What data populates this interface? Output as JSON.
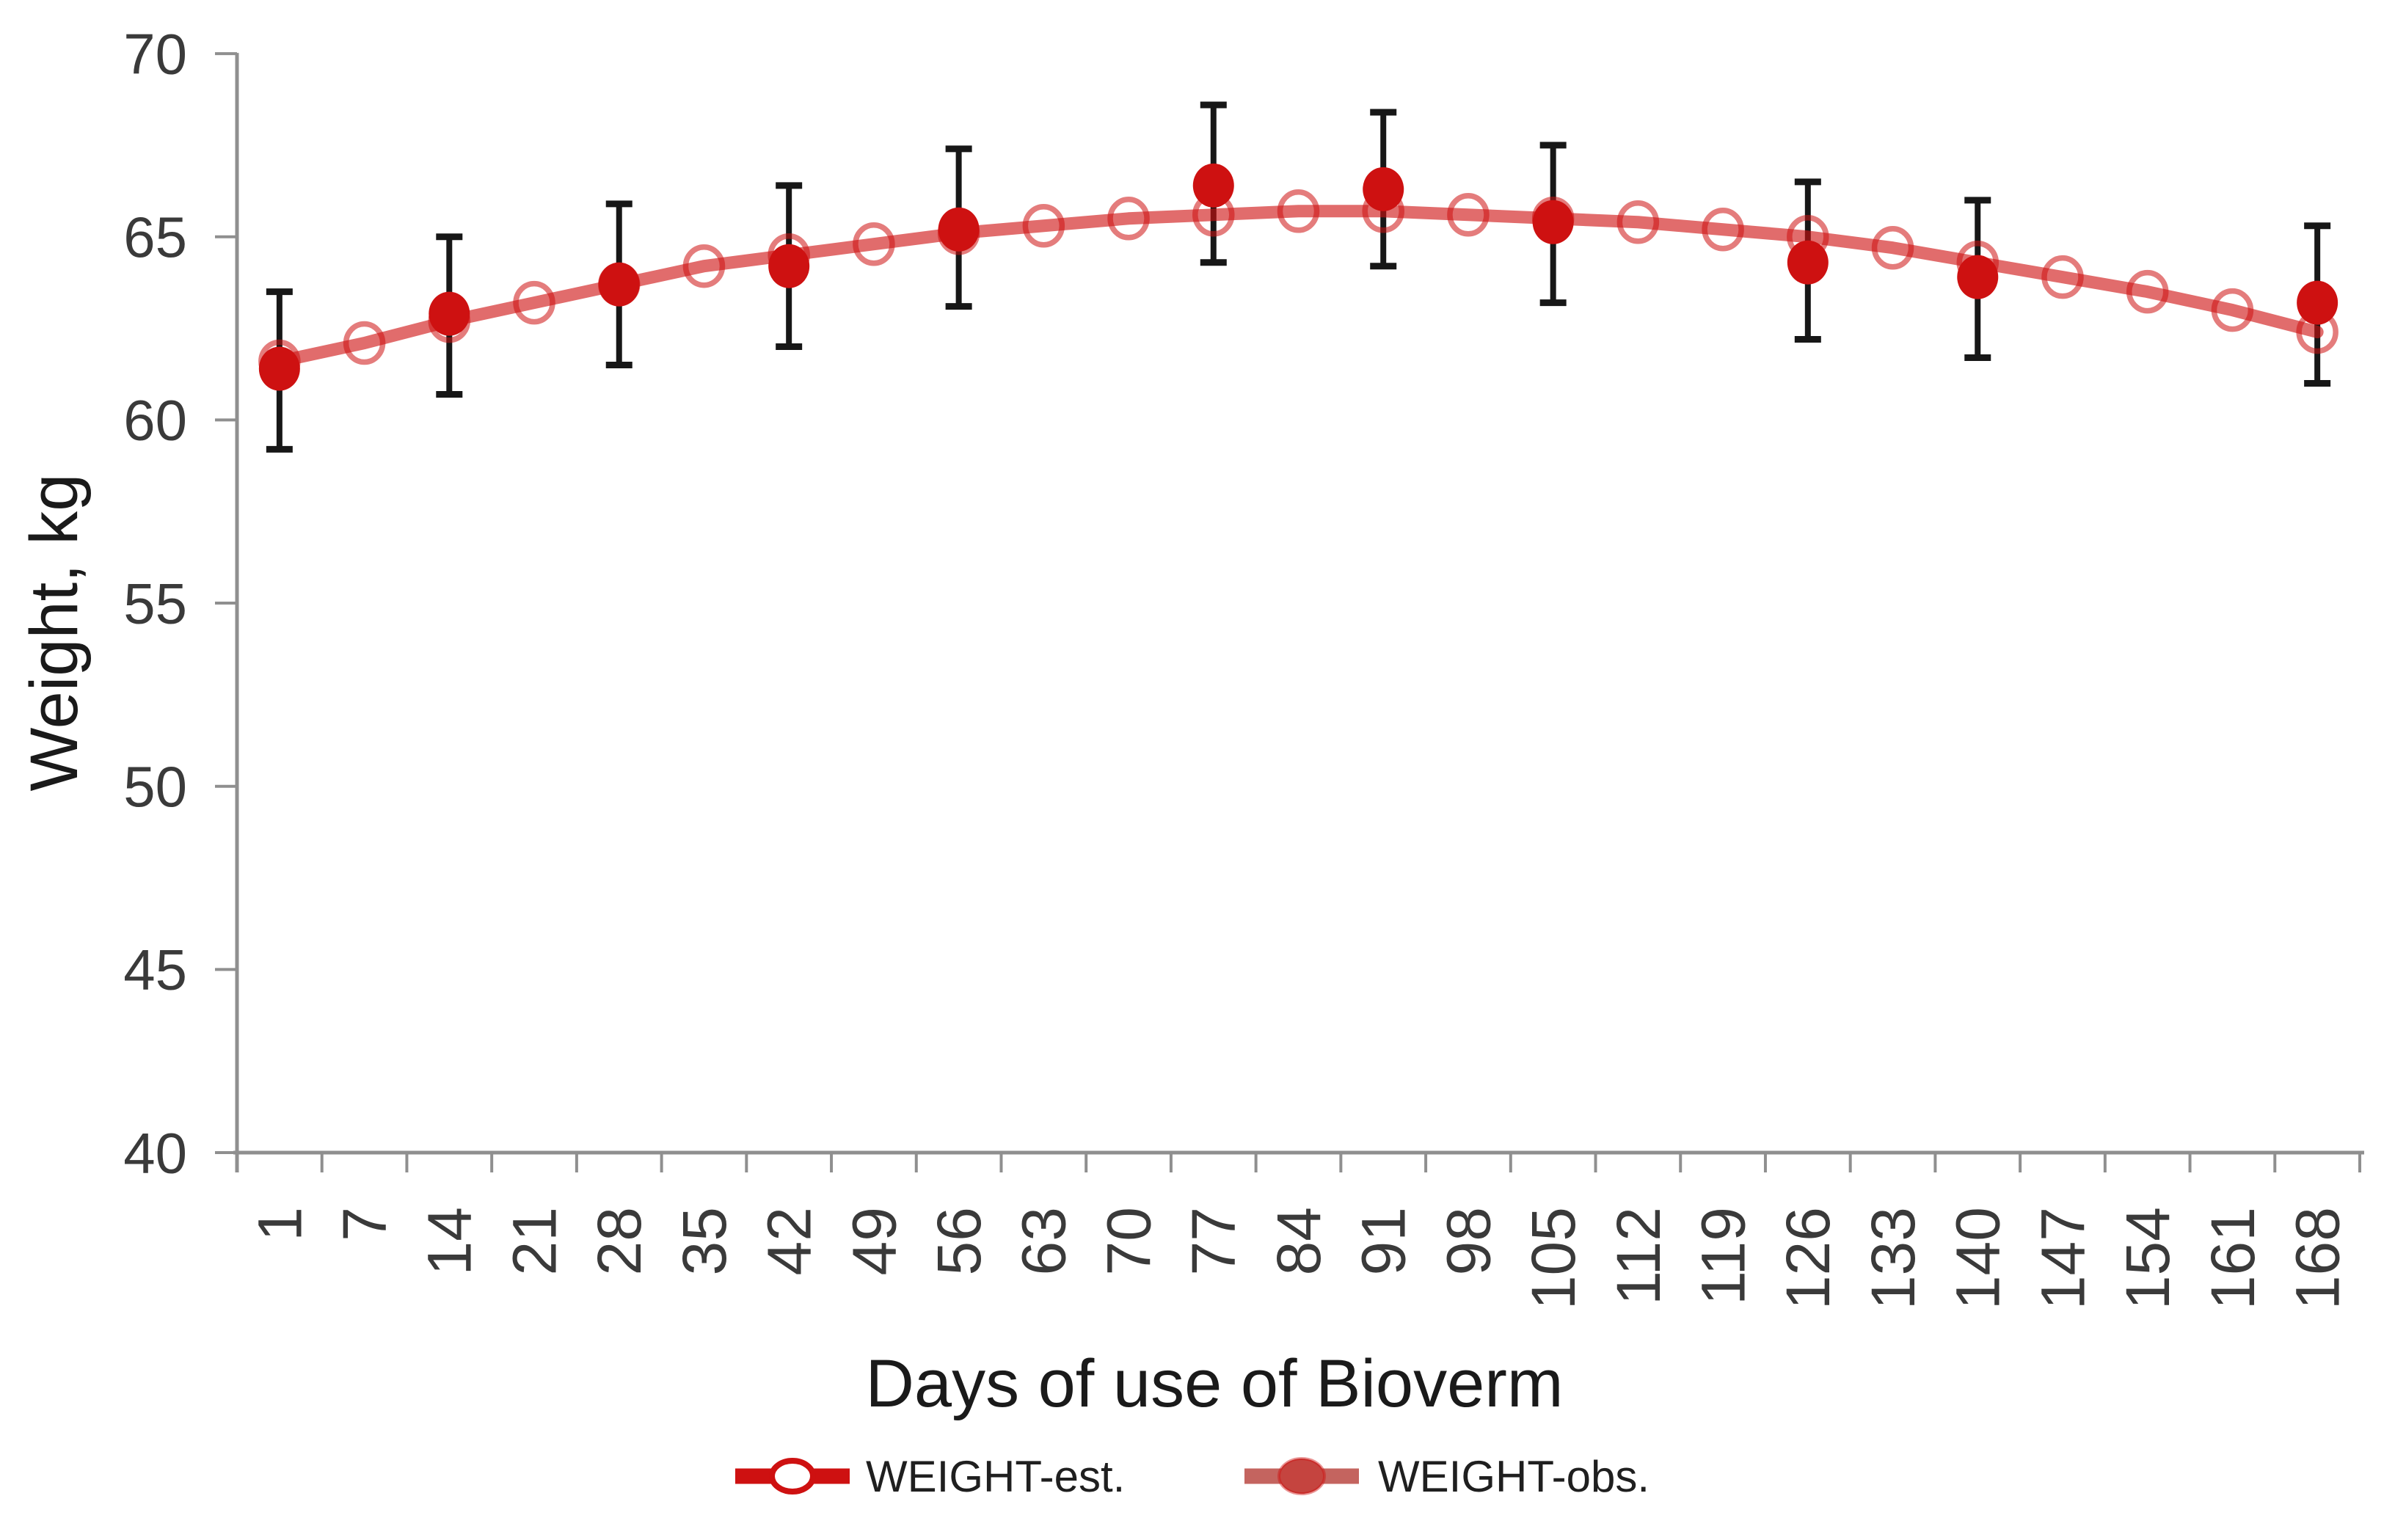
{
  "chart_data": {
    "type": "line",
    "title": "",
    "xlabel": "Days of use of Bioverm",
    "ylabel": "Weight, kg",
    "categories": [
      1,
      7,
      14,
      21,
      28,
      35,
      42,
      49,
      56,
      63,
      70,
      77,
      84,
      91,
      98,
      105,
      112,
      119,
      126,
      133,
      140,
      147,
      154,
      161,
      168
    ],
    "ylim": [
      40,
      70
    ],
    "yticks": [
      40,
      45,
      50,
      55,
      60,
      65,
      70
    ],
    "grid": false,
    "legend_position": "bottom",
    "series": [
      {
        "name": "WEIGHT-est.",
        "marker": "open-circle",
        "line": true,
        "values": [
          61.6,
          62.1,
          62.7,
          63.2,
          63.7,
          64.2,
          64.5,
          64.8,
          65.1,
          65.3,
          65.5,
          65.6,
          65.7,
          65.7,
          65.6,
          65.5,
          65.4,
          65.2,
          65.0,
          64.7,
          64.3,
          63.9,
          63.5,
          63.0,
          62.4
        ]
      },
      {
        "name": "WEIGHT-obs.",
        "marker": "filled-circle",
        "line": false,
        "error_bars": true,
        "days": [
          1,
          14,
          28,
          42,
          56,
          77,
          91,
          105,
          126,
          140,
          168
        ],
        "values": [
          61.4,
          62.9,
          63.7,
          64.2,
          65.2,
          66.4,
          66.3,
          65.4,
          64.3,
          63.9,
          63.2
        ],
        "err_low": [
          59.2,
          60.7,
          61.5,
          62.0,
          63.1,
          64.3,
          64.2,
          63.2,
          62.2,
          61.7,
          61.0
        ],
        "err_high": [
          63.5,
          65.0,
          65.9,
          66.4,
          67.4,
          68.6,
          68.4,
          67.5,
          66.5,
          66.0,
          65.3
        ]
      }
    ],
    "colors": {
      "series_red": "#CE1111",
      "muted_line_red": "#C4645F",
      "open_marker_red": "#D07B75",
      "legend_obs_fill": "#C5443F",
      "error_bar": "#171717",
      "axis_line": "#8F8F8F",
      "tick_label": "#3a3a3a",
      "title_text": "#1a1a1a"
    }
  }
}
